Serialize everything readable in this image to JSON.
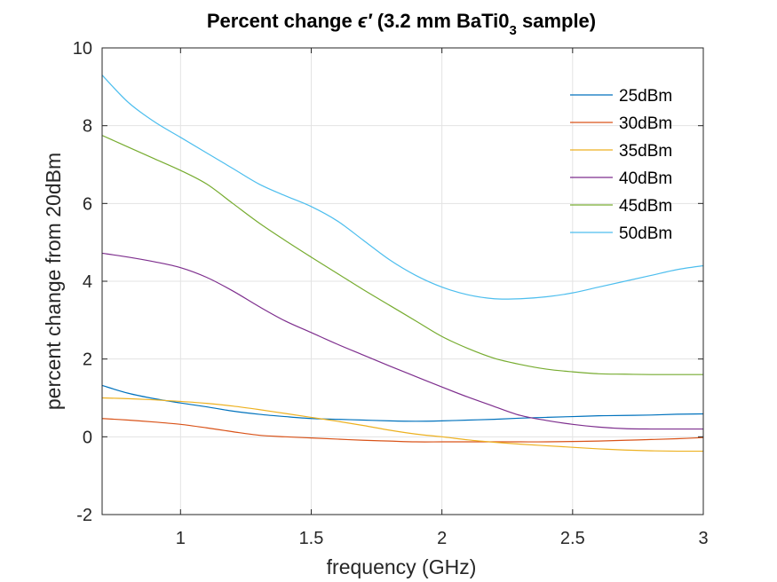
{
  "chart_data": {
    "type": "line",
    "title": {
      "prefix": "Percent change ",
      "symbol": "ϵ′",
      "middle": " (3.2 mm BaTi0",
      "subscript": "3",
      "suffix": " sample)"
    },
    "xlabel": "frequency (GHz)",
    "ylabel": "percent change from 20dBm",
    "xlim": [
      0.7,
      3.0
    ],
    "ylim": [
      -2,
      10
    ],
    "xticks": [
      1,
      1.5,
      2,
      2.5,
      3
    ],
    "xtick_labels": [
      "1",
      "1.5",
      "2",
      "2.5",
      "3"
    ],
    "yticks": [
      -2,
      0,
      2,
      4,
      6,
      8,
      10
    ],
    "ytick_labels": [
      "-2",
      "0",
      "2",
      "4",
      "6",
      "8",
      "10"
    ],
    "grid": true,
    "legend_position": "top-right",
    "x": [
      0.7,
      0.8,
      0.9,
      1.0,
      1.1,
      1.2,
      1.3,
      1.4,
      1.5,
      1.6,
      1.7,
      1.8,
      1.9,
      2.0,
      2.1,
      2.2,
      2.3,
      2.4,
      2.5,
      2.6,
      2.7,
      2.8,
      2.9,
      3.0
    ],
    "series": [
      {
        "name": "25dBm",
        "color": "#0072BD",
        "values": [
          1.32,
          1.12,
          0.98,
          0.87,
          0.77,
          0.66,
          0.58,
          0.52,
          0.47,
          0.45,
          0.43,
          0.41,
          0.4,
          0.41,
          0.43,
          0.45,
          0.48,
          0.5,
          0.52,
          0.54,
          0.55,
          0.56,
          0.58,
          0.59
        ]
      },
      {
        "name": "30dBm",
        "color": "#D95319",
        "values": [
          0.47,
          0.43,
          0.38,
          0.32,
          0.23,
          0.13,
          0.04,
          0.0,
          -0.03,
          -0.06,
          -0.09,
          -0.11,
          -0.13,
          -0.13,
          -0.13,
          -0.13,
          -0.13,
          -0.13,
          -0.12,
          -0.11,
          -0.09,
          -0.07,
          -0.05,
          -0.02
        ]
      },
      {
        "name": "35dBm",
        "color": "#EDB120",
        "values": [
          1.0,
          0.98,
          0.95,
          0.91,
          0.86,
          0.79,
          0.7,
          0.6,
          0.5,
          0.4,
          0.29,
          0.17,
          0.07,
          0.0,
          -0.08,
          -0.14,
          -0.19,
          -0.23,
          -0.27,
          -0.31,
          -0.34,
          -0.36,
          -0.37,
          -0.37
        ]
      },
      {
        "name": "40dBm",
        "color": "#7E2F8E",
        "values": [
          4.72,
          4.62,
          4.5,
          4.35,
          4.1,
          3.75,
          3.35,
          2.98,
          2.68,
          2.38,
          2.1,
          1.82,
          1.55,
          1.28,
          1.02,
          0.78,
          0.55,
          0.42,
          0.32,
          0.25,
          0.21,
          0.2,
          0.2,
          0.2
        ]
      },
      {
        "name": "45dBm",
        "color": "#77AC30",
        "values": [
          7.75,
          7.45,
          7.15,
          6.85,
          6.5,
          6.0,
          5.5,
          5.05,
          4.62,
          4.2,
          3.78,
          3.38,
          2.98,
          2.58,
          2.27,
          2.02,
          1.86,
          1.74,
          1.67,
          1.62,
          1.61,
          1.6,
          1.6,
          1.6
        ]
      },
      {
        "name": "50dBm",
        "color": "#4DBEEE",
        "values": [
          9.3,
          8.6,
          8.1,
          7.7,
          7.3,
          6.9,
          6.5,
          6.2,
          5.92,
          5.55,
          5.05,
          4.55,
          4.15,
          3.85,
          3.65,
          3.55,
          3.55,
          3.6,
          3.7,
          3.85,
          4.0,
          4.15,
          4.3,
          4.4
        ]
      }
    ]
  }
}
